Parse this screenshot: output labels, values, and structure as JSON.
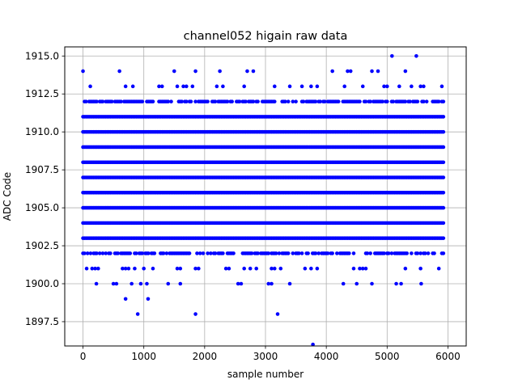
{
  "chart_data": {
    "type": "scatter",
    "title": "channel052 higain raw data",
    "xlabel": "sample number",
    "ylabel": "ADC Code",
    "xlim": [
      -300,
      6300
    ],
    "ylim": [
      1895.9,
      1915.6
    ],
    "xticks": [
      0,
      1000,
      2000,
      3000,
      4000,
      5000,
      6000
    ],
    "xtick_labels": [
      "0",
      "1000",
      "2000",
      "3000",
      "4000",
      "5000",
      "6000"
    ],
    "yticks": [
      1897.5,
      1900.0,
      1902.5,
      1905.0,
      1907.5,
      1910.0,
      1912.5,
      1915.0
    ],
    "ytick_labels": [
      "1897.5",
      "1900.0",
      "1902.5",
      "1905.0",
      "1907.5",
      "1910.0",
      "1912.5",
      "1915.0"
    ],
    "grid": true,
    "marker_color": "#0000ff",
    "series": [
      {
        "x_range": [
          0,
          5930
        ],
        "sample_step": 25,
        "dense_levels": [
          1903,
          1904,
          1905,
          1906,
          1907,
          1908,
          1909,
          1910,
          1911
        ],
        "semi_dense_levels": [
          1902,
          1912
        ],
        "points": [
          [
            0,
            1914
          ],
          [
            120,
            1913
          ],
          [
            600,
            1914
          ],
          [
            700,
            1913
          ],
          [
            820,
            1913
          ],
          [
            1250,
            1913
          ],
          [
            1300,
            1913
          ],
          [
            1500,
            1914
          ],
          [
            1550,
            1913
          ],
          [
            1650,
            1913
          ],
          [
            1700,
            1913
          ],
          [
            1800,
            1913
          ],
          [
            1850,
            1914
          ],
          [
            2200,
            1913
          ],
          [
            2250,
            1914
          ],
          [
            2300,
            1913
          ],
          [
            2650,
            1913
          ],
          [
            2700,
            1914
          ],
          [
            2800,
            1914
          ],
          [
            3150,
            1913
          ],
          [
            3400,
            1913
          ],
          [
            3600,
            1913
          ],
          [
            3750,
            1913
          ],
          [
            3850,
            1913
          ],
          [
            4100,
            1914
          ],
          [
            4300,
            1913
          ],
          [
            4350,
            1914
          ],
          [
            4400,
            1914
          ],
          [
            4600,
            1913
          ],
          [
            4750,
            1914
          ],
          [
            4850,
            1914
          ],
          [
            4950,
            1913
          ],
          [
            5000,
            1913
          ],
          [
            5080,
            1915
          ],
          [
            5200,
            1913
          ],
          [
            5300,
            1914
          ],
          [
            5400,
            1913
          ],
          [
            5480,
            1915
          ],
          [
            5550,
            1913
          ],
          [
            5600,
            1913
          ],
          [
            5900,
            1913
          ],
          [
            60,
            1901
          ],
          [
            150,
            1901
          ],
          [
            200,
            1901
          ],
          [
            250,
            1901
          ],
          [
            650,
            1901
          ],
          [
            700,
            1901
          ],
          [
            750,
            1901
          ],
          [
            850,
            1901
          ],
          [
            1000,
            1901
          ],
          [
            1150,
            1901
          ],
          [
            1550,
            1901
          ],
          [
            1600,
            1901
          ],
          [
            1850,
            1901
          ],
          [
            1900,
            1901
          ],
          [
            2350,
            1901
          ],
          [
            2400,
            1901
          ],
          [
            2650,
            1901
          ],
          [
            2750,
            1901
          ],
          [
            2850,
            1901
          ],
          [
            3100,
            1901
          ],
          [
            3150,
            1901
          ],
          [
            3250,
            1901
          ],
          [
            3650,
            1901
          ],
          [
            3750,
            1901
          ],
          [
            3850,
            1901
          ],
          [
            4450,
            1901
          ],
          [
            4550,
            1901
          ],
          [
            4600,
            1901
          ],
          [
            4650,
            1901
          ],
          [
            5300,
            1901
          ],
          [
            5550,
            1901
          ],
          [
            5850,
            1901
          ],
          [
            220,
            1900
          ],
          [
            500,
            1900
          ],
          [
            550,
            1900
          ],
          [
            800,
            1900
          ],
          [
            950,
            1900
          ],
          [
            1050,
            1900
          ],
          [
            1400,
            1900
          ],
          [
            1600,
            1900
          ],
          [
            2550,
            1900
          ],
          [
            2600,
            1900
          ],
          [
            3050,
            1900
          ],
          [
            3100,
            1900
          ],
          [
            3400,
            1900
          ],
          [
            4280,
            1900
          ],
          [
            4500,
            1900
          ],
          [
            4750,
            1900
          ],
          [
            5150,
            1900
          ],
          [
            5230,
            1900
          ],
          [
            5560,
            1900
          ],
          [
            700,
            1899
          ],
          [
            1070,
            1899
          ],
          [
            900,
            1898
          ],
          [
            1850,
            1898
          ],
          [
            3200,
            1898
          ],
          [
            3780,
            1896
          ]
        ]
      }
    ]
  }
}
